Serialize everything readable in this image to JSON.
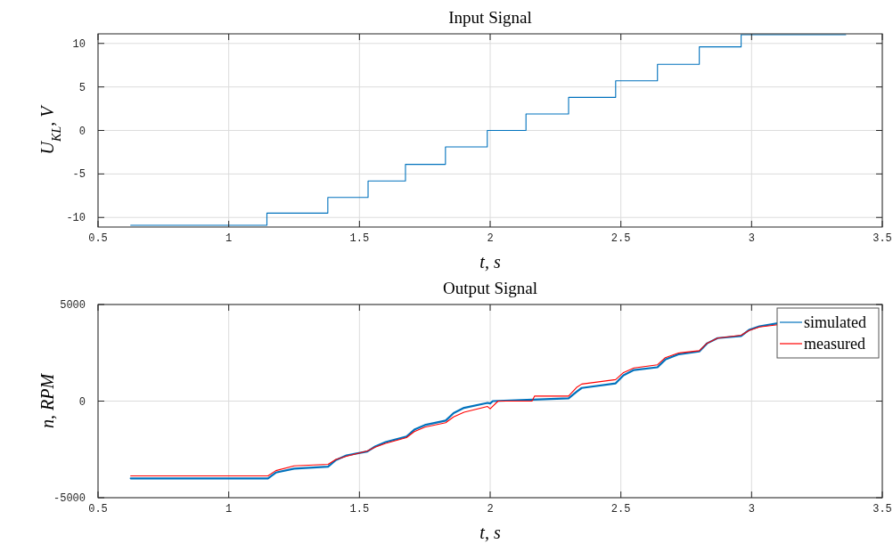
{
  "chart_data": [
    {
      "type": "step",
      "title": "Input Signal",
      "xlabel": "t, s",
      "ylabel": "U$_{KL}$, V",
      "xlim": [
        0.5,
        3.5
      ],
      "xticks": [
        0.5,
        1,
        1.5,
        2,
        2.5,
        3,
        3.5
      ],
      "ylim": [
        -11.1,
        11.1
      ],
      "yticks": [
        -10,
        -5,
        0,
        5,
        10
      ],
      "grid": true,
      "legend": false,
      "series": [
        {
          "color": "#0072bd",
          "x": [
            0.625,
            1.146,
            1.379,
            1.533,
            1.676,
            1.829,
            1.989,
            2.137,
            2.3,
            2.48,
            2.64,
            2.8,
            2.96,
            3.36
          ],
          "values": [
            -10.9,
            -9.5,
            -7.7,
            -5.8,
            -3.9,
            -1.9,
            0,
            1.9,
            3.8,
            5.7,
            7.6,
            9.6,
            11.0,
            11.0
          ]
        }
      ]
    },
    {
      "type": "line",
      "title": "Output Signal",
      "xlabel": "t, s",
      "ylabel": "n, RPM",
      "xlim": [
        0.5,
        3.5
      ],
      "xticks": [
        0.5,
        1,
        1.5,
        2,
        2.5,
        3,
        3.5
      ],
      "ylim": [
        -5000,
        5000
      ],
      "yticks": [
        -5000,
        0,
        5000
      ],
      "grid": true,
      "legend": "top right",
      "series": [
        {
          "name": "simulated",
          "color": "#0072bd",
          "x": [
            0.625,
            1.15,
            1.18,
            1.25,
            1.38,
            1.41,
            1.45,
            1.53,
            1.56,
            1.6,
            1.68,
            1.71,
            1.75,
            1.83,
            1.86,
            1.9,
            1.99,
            2.0,
            2.01,
            2.14,
            2.3,
            2.33,
            2.35,
            2.48,
            2.51,
            2.55,
            2.64,
            2.67,
            2.72,
            2.8,
            2.83,
            2.87,
            2.96,
            2.99,
            3.03,
            3.1
          ],
          "values": [
            -4000,
            -4000,
            -3700,
            -3500,
            -3390,
            -3050,
            -2810,
            -2610,
            -2350,
            -2120,
            -1840,
            -1480,
            -1240,
            -1010,
            -620,
            -350,
            -90,
            -120,
            0,
            60,
            140,
            480,
            680,
            920,
            1340,
            1610,
            1750,
            2150,
            2420,
            2570,
            2990,
            3260,
            3370,
            3680,
            3870,
            4030
          ]
        },
        {
          "name": "measured",
          "color": "#ff0000",
          "x": [
            0.625,
            1.15,
            1.18,
            1.25,
            1.38,
            1.41,
            1.45,
            1.53,
            1.56,
            1.6,
            1.68,
            1.71,
            1.75,
            1.83,
            1.86,
            1.9,
            1.99,
            2.0,
            2.03,
            2.16,
            2.17,
            2.3,
            2.33,
            2.35,
            2.48,
            2.51,
            2.55,
            2.64,
            2.67,
            2.72,
            2.8,
            2.83,
            2.87,
            2.96,
            2.99,
            3.03,
            3.1
          ],
          "values": [
            -3870,
            -3870,
            -3600,
            -3350,
            -3270,
            -3020,
            -2860,
            -2580,
            -2380,
            -2190,
            -1890,
            -1580,
            -1350,
            -1120,
            -820,
            -580,
            -280,
            -400,
            0,
            0,
            260,
            260,
            700,
            880,
            1110,
            1480,
            1720,
            1880,
            2250,
            2490,
            2610,
            3000,
            3260,
            3410,
            3650,
            3840,
            3950
          ]
        }
      ]
    }
  ]
}
